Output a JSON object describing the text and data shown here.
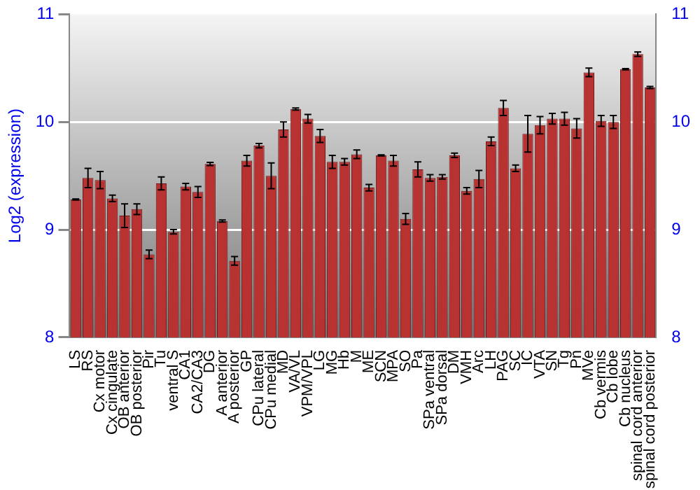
{
  "chart_data": {
    "type": "bar",
    "ylabel": "Log2 (expression)",
    "categories": [
      "LS",
      "RS",
      "Cx motor",
      "Cx cingulate",
      "OB anterior",
      "OB posterior",
      "Pir",
      "Tu",
      "ventral S",
      "CA1",
      "CA2/CA3",
      "DG",
      "A anterior",
      "A posterior",
      "GP",
      "CPu lateral",
      "CPu medial",
      "MD",
      "VA/VL",
      "VPM/VPL",
      "LG",
      "MG",
      "Hb",
      "M",
      "ME",
      "SCN",
      "MPA",
      "SO",
      "Pa",
      "SPa ventral",
      "SPa dorsal",
      "DM",
      "VMH",
      "Arc",
      "LH",
      "PAG",
      "SC",
      "IC",
      "VTA",
      "SN",
      "Tg",
      "Pn",
      "MVe",
      "Cb vermis",
      "Cb lobe",
      "Cb nucleus",
      "spinal cord anterior",
      "spinal cord posterior"
    ],
    "values": [
      9.28,
      9.48,
      9.46,
      9.29,
      9.13,
      9.19,
      8.77,
      9.43,
      8.98,
      9.4,
      9.35,
      9.61,
      9.08,
      8.71,
      9.64,
      9.78,
      9.5,
      9.93,
      10.12,
      10.03,
      9.87,
      9.63,
      9.63,
      9.7,
      9.39,
      9.69,
      9.64,
      9.1,
      9.56,
      9.48,
      9.49,
      9.69,
      9.36,
      9.47,
      9.82,
      10.13,
      9.57,
      9.89,
      9.97,
      10.03,
      10.03,
      9.94,
      10.46,
      10.01,
      10,
      10.49,
      10.63,
      10.32
    ],
    "errors": [
      0.005,
      0.09,
      0.08,
      0.03,
      0.11,
      0.05,
      0.04,
      0.06,
      0.02,
      0.03,
      0.05,
      0.015,
      0.01,
      0.04,
      0.05,
      0.02,
      0.12,
      0.07,
      0.01,
      0.04,
      0.06,
      0.06,
      0.03,
      0.04,
      0.03,
      0.005,
      0.05,
      0.05,
      0.07,
      0.03,
      0.02,
      0.02,
      0.03,
      0.08,
      0.04,
      0.07,
      0.03,
      0.17,
      0.08,
      0.05,
      0.06,
      0.09,
      0.04,
      0.05,
      0.06,
      0.005,
      0.02,
      0.01
    ],
    "color": "#b83232",
    "ylim": [
      8,
      11
    ],
    "yticks": [
      8,
      9,
      10,
      11
    ],
    "y2lim": [
      8,
      11
    ],
    "y2ticks": [
      8,
      9,
      10,
      11
    ],
    "grid": "y",
    "legend": false
  }
}
